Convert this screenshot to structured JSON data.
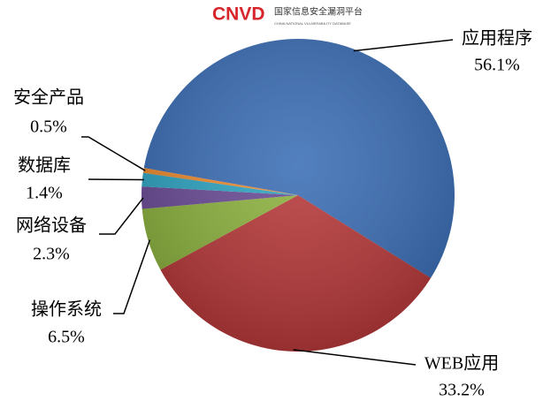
{
  "logo": {
    "mark": "CNVD",
    "name": "国家信息安全漏洞平台",
    "subtitle": "CHINA NATIONAL VULNERABILITY DATABASE"
  },
  "chart_data": {
    "type": "pie",
    "categories": [
      "应用程序",
      "WEB应用",
      "操作系统",
      "网络设备",
      "数据库",
      "安全产品"
    ],
    "values": [
      56.1,
      33.2,
      6.5,
      2.3,
      1.4,
      0.5
    ],
    "value_labels": [
      "56.1%",
      "33.2%",
      "6.5%",
      "2.3%",
      "1.4%",
      "0.5%"
    ],
    "colors": [
      "#3b6eb5",
      "#b7393a",
      "#8cb23f",
      "#6b4c96",
      "#2fa4c2",
      "#ee8a2e"
    ]
  }
}
